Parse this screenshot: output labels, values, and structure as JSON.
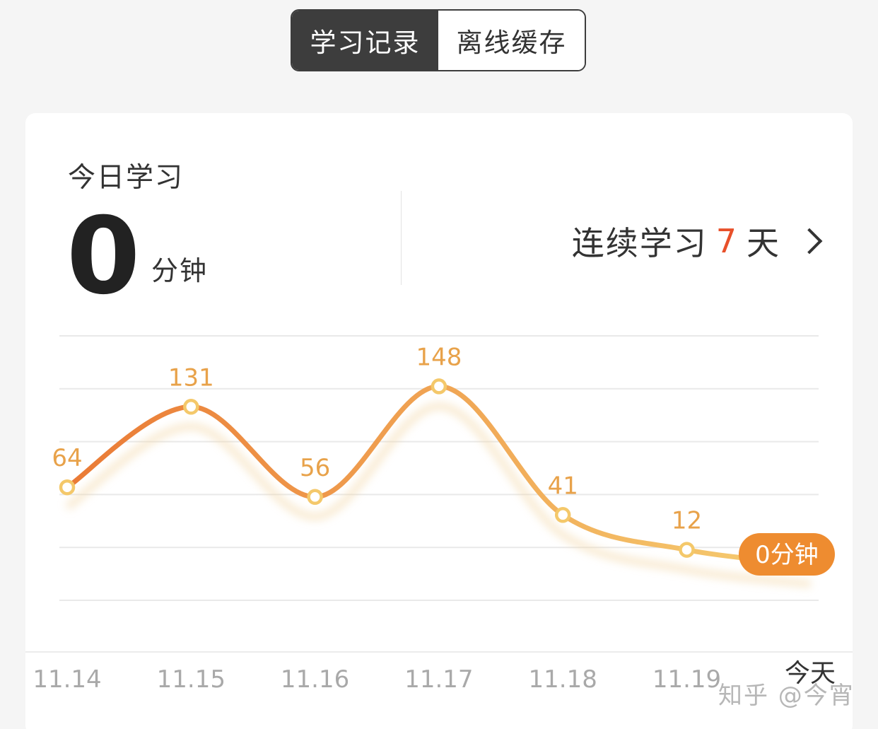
{
  "tabs": [
    {
      "label": "学习记录",
      "active": true
    },
    {
      "label": "离线缓存",
      "active": false
    }
  ],
  "today": {
    "label": "今日学习",
    "value": "0",
    "unit": "分钟"
  },
  "streak": {
    "prefix": "连续学习",
    "days": "7",
    "suffix": "天",
    "days_color": "#e8502a"
  },
  "chart_data": {
    "type": "line",
    "categories": [
      "11.14",
      "11.15",
      "11.16",
      "11.17",
      "11.18",
      "11.19",
      "今天"
    ],
    "values": [
      64,
      131,
      56,
      148,
      41,
      12,
      0
    ],
    "point_labels": [
      "64",
      "131",
      "56",
      "148",
      "41",
      "12",
      "0分钟"
    ],
    "unit": "分钟",
    "ylim": [
      -30,
      190
    ],
    "grid": true,
    "colors": {
      "line_start": "#ea7a35",
      "line_end": "#f6cf72",
      "label": "#e8a24a",
      "highlight_bg": "#ee8c30"
    }
  },
  "watermark": "知乎 @今宵"
}
